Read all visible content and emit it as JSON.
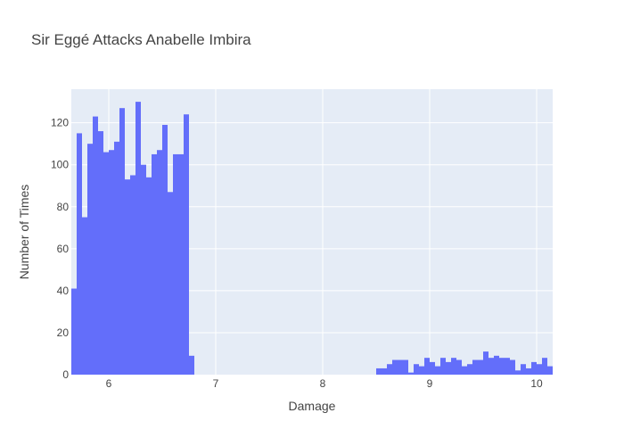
{
  "chart_data": {
    "type": "bar",
    "title": "Sir Eggé Attacks Anabelle Imbira",
    "xlabel": "Damage",
    "ylabel": "Number of Times",
    "xlim": [
      5.65,
      10.15
    ],
    "ylim": [
      0,
      136
    ],
    "bin_width": 0.05,
    "x_ticks": [
      6,
      7,
      8,
      9,
      10
    ],
    "y_ticks": [
      0,
      20,
      40,
      60,
      80,
      100,
      120
    ],
    "grid": true,
    "legend": "none",
    "colors": {
      "bar": "#636efa",
      "plot_bg": "#e5ecf6",
      "grid": "#ffffff",
      "text": "#444444"
    },
    "bins": [
      {
        "x": 5.65,
        "count": 41
      },
      {
        "x": 5.7,
        "count": 115
      },
      {
        "x": 5.75,
        "count": 75
      },
      {
        "x": 5.8,
        "count": 110
      },
      {
        "x": 5.85,
        "count": 123
      },
      {
        "x": 5.9,
        "count": 116
      },
      {
        "x": 5.95,
        "count": 106
      },
      {
        "x": 6.0,
        "count": 107
      },
      {
        "x": 6.05,
        "count": 111
      },
      {
        "x": 6.1,
        "count": 127
      },
      {
        "x": 6.15,
        "count": 93
      },
      {
        "x": 6.2,
        "count": 95
      },
      {
        "x": 6.25,
        "count": 130
      },
      {
        "x": 6.3,
        "count": 100
      },
      {
        "x": 6.35,
        "count": 94
      },
      {
        "x": 6.4,
        "count": 105
      },
      {
        "x": 6.45,
        "count": 107
      },
      {
        "x": 6.5,
        "count": 119
      },
      {
        "x": 6.55,
        "count": 87
      },
      {
        "x": 6.6,
        "count": 105
      },
      {
        "x": 6.65,
        "count": 105
      },
      {
        "x": 6.7,
        "count": 124
      },
      {
        "x": 6.75,
        "count": 9
      },
      {
        "x": 8.5,
        "count": 3
      },
      {
        "x": 8.55,
        "count": 3
      },
      {
        "x": 8.6,
        "count": 5
      },
      {
        "x": 8.65,
        "count": 7
      },
      {
        "x": 8.7,
        "count": 7
      },
      {
        "x": 8.75,
        "count": 7
      },
      {
        "x": 8.8,
        "count": 1
      },
      {
        "x": 8.85,
        "count": 5
      },
      {
        "x": 8.9,
        "count": 4
      },
      {
        "x": 8.95,
        "count": 8
      },
      {
        "x": 9.0,
        "count": 6
      },
      {
        "x": 9.05,
        "count": 4
      },
      {
        "x": 9.1,
        "count": 8
      },
      {
        "x": 9.15,
        "count": 6
      },
      {
        "x": 9.2,
        "count": 8
      },
      {
        "x": 9.25,
        "count": 7
      },
      {
        "x": 9.3,
        "count": 4
      },
      {
        "x": 9.35,
        "count": 5
      },
      {
        "x": 9.4,
        "count": 7
      },
      {
        "x": 9.45,
        "count": 7
      },
      {
        "x": 9.5,
        "count": 11
      },
      {
        "x": 9.55,
        "count": 8
      },
      {
        "x": 9.6,
        "count": 9
      },
      {
        "x": 9.65,
        "count": 8
      },
      {
        "x": 9.7,
        "count": 8
      },
      {
        "x": 9.75,
        "count": 7
      },
      {
        "x": 9.8,
        "count": 2
      },
      {
        "x": 9.85,
        "count": 5
      },
      {
        "x": 9.9,
        "count": 3
      },
      {
        "x": 9.95,
        "count": 6
      },
      {
        "x": 10.0,
        "count": 5
      },
      {
        "x": 10.05,
        "count": 8
      },
      {
        "x": 10.1,
        "count": 4
      }
    ]
  }
}
